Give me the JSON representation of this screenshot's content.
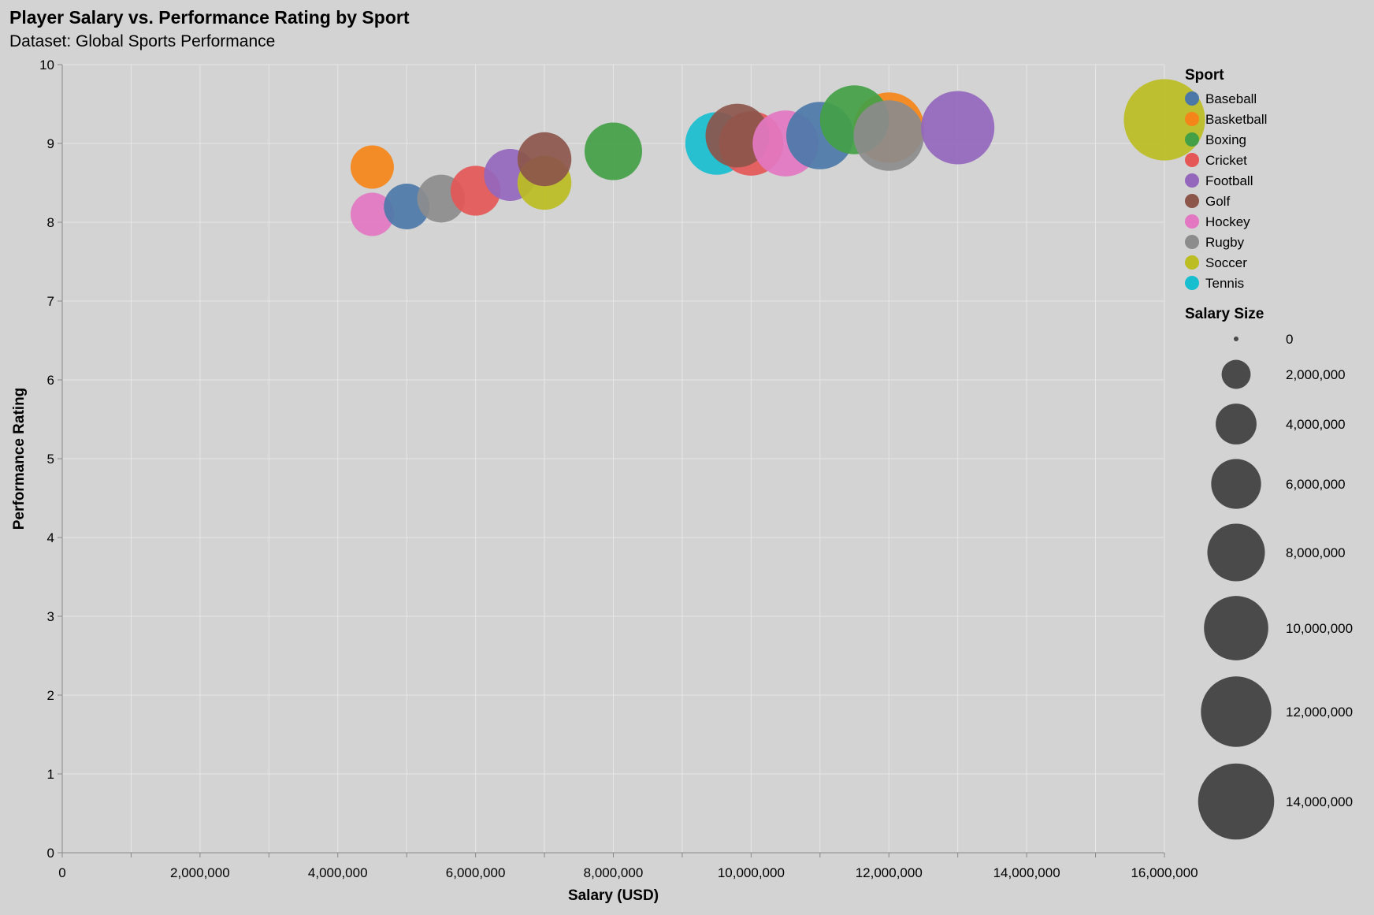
{
  "chart_data": {
    "type": "scatter",
    "title": "Player Salary vs. Performance Rating by Sport",
    "subtitle": "Dataset: Global Sports Performance",
    "xlabel": "Salary (USD)",
    "ylabel": "Performance Rating",
    "xlim": [
      0,
      16000000
    ],
    "ylim": [
      0,
      10
    ],
    "x_ticks": [
      0,
      2000000,
      4000000,
      6000000,
      8000000,
      10000000,
      12000000,
      14000000,
      16000000
    ],
    "x_tick_labels": [
      "0",
      "2,000,000",
      "4,000,000",
      "6,000,000",
      "8,000,000",
      "10,000,000",
      "12,000,000",
      "14,000,000",
      "16,000,000"
    ],
    "x_minor_ticks": [
      1000000,
      3000000,
      5000000,
      7000000,
      9000000,
      11000000,
      13000000,
      15000000
    ],
    "y_ticks": [
      0,
      1,
      2,
      3,
      4,
      5,
      6,
      7,
      8,
      9,
      10
    ],
    "y_tick_labels": [
      "0",
      "1",
      "2",
      "3",
      "4",
      "5",
      "6",
      "7",
      "8",
      "9",
      "10"
    ],
    "grid": true,
    "color_legend": {
      "title": "Sport",
      "entries": [
        {
          "label": "Baseball",
          "color": "#4c78a8"
        },
        {
          "label": "Basketball",
          "color": "#f58518"
        },
        {
          "label": "Boxing",
          "color": "#43a047"
        },
        {
          "label": "Cricket",
          "color": "#e45756"
        },
        {
          "label": "Football",
          "color": "#9467bd"
        },
        {
          "label": "Golf",
          "color": "#8c564b"
        },
        {
          "label": "Hockey",
          "color": "#e377c2"
        },
        {
          "label": "Rugby",
          "color": "#8c8c8c"
        },
        {
          "label": "Soccer",
          "color": "#bcbd22"
        },
        {
          "label": "Tennis",
          "color": "#17becf"
        }
      ]
    },
    "size_legend": {
      "title": "Salary Size",
      "values": [
        0,
        2000000,
        4000000,
        6000000,
        8000000,
        10000000,
        12000000,
        14000000
      ],
      "labels": [
        "0",
        "2,000,000",
        "4,000,000",
        "6,000,000",
        "8,000,000",
        "10,000,000",
        "12,000,000",
        "14,000,000"
      ],
      "color": "#4a4a4a"
    },
    "points": [
      {
        "sport": "Basketball",
        "x": 4500000,
        "y": 8.7
      },
      {
        "sport": "Hockey",
        "x": 4500000,
        "y": 8.1
      },
      {
        "sport": "Baseball",
        "x": 5000000,
        "y": 8.2
      },
      {
        "sport": "Rugby",
        "x": 5500000,
        "y": 8.3
      },
      {
        "sport": "Cricket",
        "x": 6000000,
        "y": 8.4
      },
      {
        "sport": "Football",
        "x": 6500000,
        "y": 8.6
      },
      {
        "sport": "Soccer",
        "x": 7000000,
        "y": 8.5
      },
      {
        "sport": "Golf",
        "x": 7000000,
        "y": 8.8
      },
      {
        "sport": "Boxing",
        "x": 8000000,
        "y": 8.9
      },
      {
        "sport": "Tennis",
        "x": 9500000,
        "y": 9.0
      },
      {
        "sport": "Cricket",
        "x": 10000000,
        "y": 9.0
      },
      {
        "sport": "Golf",
        "x": 9800000,
        "y": 9.1
      },
      {
        "sport": "Hockey",
        "x": 10500000,
        "y": 9.0
      },
      {
        "sport": "Baseball",
        "x": 11000000,
        "y": 9.1
      },
      {
        "sport": "Basketball",
        "x": 12000000,
        "y": 9.2
      },
      {
        "sport": "Boxing",
        "x": 11500000,
        "y": 9.3
      },
      {
        "sport": "Rugby",
        "x": 12000000,
        "y": 9.1
      },
      {
        "sport": "Football",
        "x": 13000000,
        "y": 9.2
      },
      {
        "sport": "Soccer",
        "x": 16000000,
        "y": 9.3
      }
    ]
  }
}
